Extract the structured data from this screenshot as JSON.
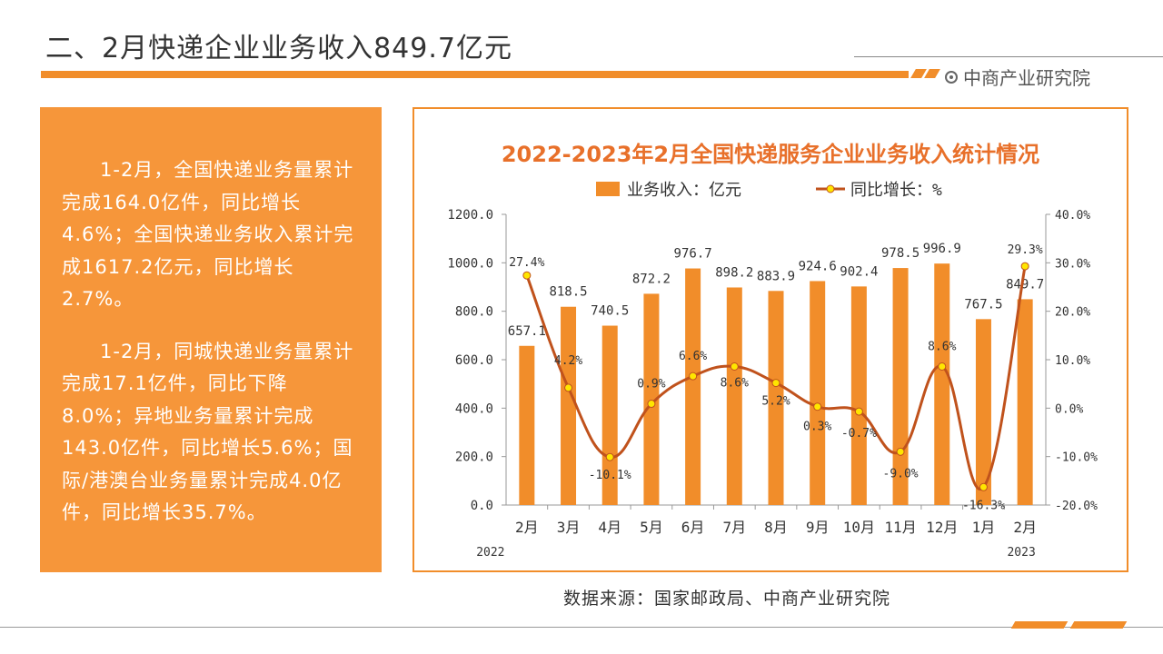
{
  "page_title": "二、2月快递企业业务收入849.7亿元",
  "brand": "中商产业研究院",
  "text_paragraphs": [
    "1-2月，全国快递业务量累计完成164.0亿件，同比增长4.6%；全国快递业务收入累计完成1617.2亿元，同比增长2.7%。",
    "1-2月，同城快递业务量累计完成17.1亿件，同比下降8.0%；异地业务量累计完成143.0亿件，同比增长5.6%；国际/港澳台业务量累计完成4.0亿件，同比增长35.7%。"
  ],
  "source": "数据来源：国家邮政局、中商产业研究院",
  "colors": {
    "bar": "#f18d2a",
    "line": "#c0521c",
    "marker": "#ffe600",
    "title": "#e8702a",
    "accent": "#f18d2a"
  },
  "chart_data": {
    "type": "bar",
    "title": "2022-2023年2月全国快递服务企业业务收入统计情况",
    "categories": [
      "2月",
      "3月",
      "4月",
      "5月",
      "6月",
      "7月",
      "8月",
      "9月",
      "10月",
      "11月",
      "12月",
      "1月",
      "2月"
    ],
    "year_labels": [
      {
        "category_index": 0,
        "label": "2022"
      },
      {
        "category_index": 12,
        "label": "2023"
      }
    ],
    "series": [
      {
        "name": "业务收入：亿元",
        "type": "bar",
        "axis": "left",
        "values": [
          657.1,
          818.5,
          740.5,
          872.2,
          976.7,
          898.2,
          883.9,
          924.6,
          902.4,
          978.5,
          996.9,
          767.5,
          849.7
        ],
        "labels": [
          "657.1",
          "818.5",
          "740.5",
          "872.2",
          "976.7",
          "898.2",
          "883.9",
          "924.6",
          "902.4",
          "978.5",
          "996.9",
          "767.5",
          "849.7"
        ]
      },
      {
        "name": "同比增长：%",
        "type": "line",
        "axis": "right",
        "values": [
          27.4,
          4.2,
          -10.1,
          0.9,
          6.6,
          8.6,
          5.2,
          0.3,
          -0.7,
          -9.0,
          8.6,
          -16.3,
          29.3
        ],
        "labels": [
          "27.4%",
          "4.2%",
          "-10.1%",
          "0.9%",
          "6.6%",
          "8.6%",
          "5.2%",
          "0.3%",
          "-0.7%",
          "-9.0%",
          "8.6%",
          "-16.3%",
          "29.3%"
        ]
      }
    ],
    "y_left": {
      "min": 0,
      "max": 1200,
      "ticks": [
        "0.0",
        "200.0",
        "400.0",
        "600.0",
        "800.0",
        "1000.0",
        "1200.0"
      ]
    },
    "y_right": {
      "min": -20,
      "max": 40,
      "ticks": [
        "-20.0%",
        "-10.0%",
        "0.0%",
        "10.0%",
        "20.0%",
        "30.0%",
        "40.0%"
      ]
    },
    "legend_position": "top",
    "grid": false
  }
}
